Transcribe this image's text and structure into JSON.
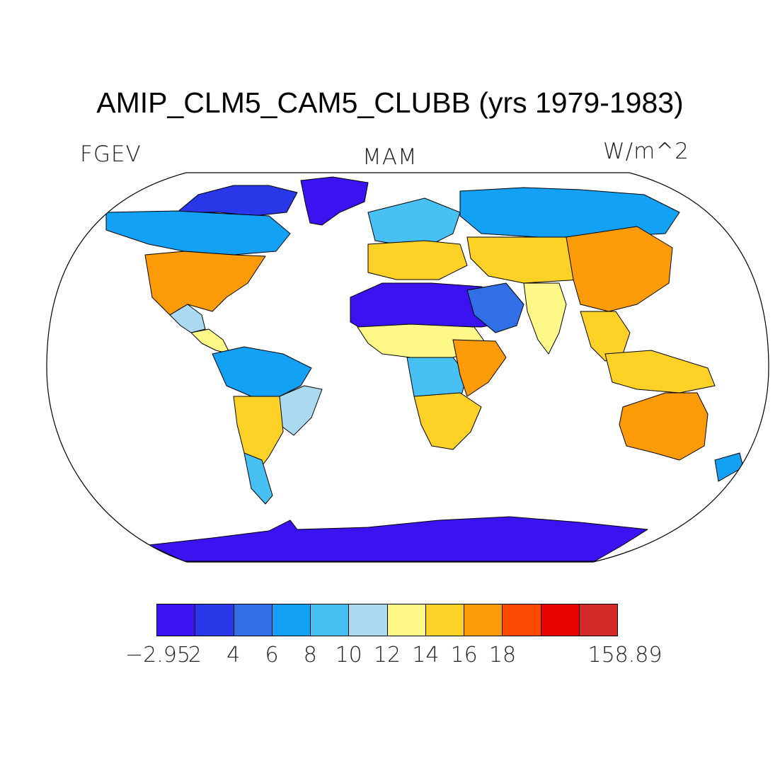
{
  "title": "AMIP_CLM5_CAM5_CLUBB (yrs 1979-1983)",
  "variable": "FGEV",
  "season": "MAM",
  "units": "W/m^2",
  "projection": "robinson",
  "colorbar": {
    "colors": [
      "#3a13f0",
      "#2837e8",
      "#306fe6",
      "#13a1f5",
      "#47c1f3",
      "#abdaf0",
      "#fef888",
      "#fed127",
      "#fd9b08",
      "#fd4a02",
      "#ea0101",
      "#d62a2a"
    ],
    "labels": [
      "−2.95",
      "2",
      "4",
      "6",
      "8",
      "10",
      "12",
      "14",
      "16",
      "18",
      "158.89"
    ]
  },
  "chart_data": {
    "type": "heatmap",
    "title": "AMIP_CLM5_CAM5_CLUBB (yrs 1979-1983)",
    "variable": "FGEV",
    "season": "MAM",
    "units": "W/m^2",
    "range": [
      -2.95,
      158.89
    ],
    "levels": [
      2,
      4,
      6,
      8,
      10,
      12,
      14,
      16,
      18
    ],
    "regions": [
      {
        "name": "Antarctica",
        "value": -1
      },
      {
        "name": "Greenland",
        "value": 0
      },
      {
        "name": "Canadian Arctic",
        "value": 3
      },
      {
        "name": "Canada",
        "value": 7
      },
      {
        "name": "USA",
        "value": 16
      },
      {
        "name": "Mexico",
        "value": 11
      },
      {
        "name": "Central America",
        "value": 13
      },
      {
        "name": "South America North",
        "value": 7
      },
      {
        "name": "South America East",
        "value": 11
      },
      {
        "name": "South America South",
        "value": 15
      },
      {
        "name": "Patagonia",
        "value": 9
      },
      {
        "name": "Sahara",
        "value": 1
      },
      {
        "name": "Sahel",
        "value": 13
      },
      {
        "name": "Central Africa",
        "value": 8
      },
      {
        "name": "East Africa",
        "value": 17
      },
      {
        "name": "Southern Africa",
        "value": 15
      },
      {
        "name": "Europe",
        "value": 9
      },
      {
        "name": "Mediterranean",
        "value": 15
      },
      {
        "name": "Arabia",
        "value": 5
      },
      {
        "name": "Siberia",
        "value": 7
      },
      {
        "name": "Central Asia",
        "value": 15
      },
      {
        "name": "India",
        "value": 12
      },
      {
        "name": "East Asia",
        "value": 17
      },
      {
        "name": "Southeast Asia",
        "value": 14
      },
      {
        "name": "Maritime Continent",
        "value": 15
      },
      {
        "name": "Australia",
        "value": 17
      },
      {
        "name": "New Zealand",
        "value": 7
      }
    ]
  }
}
